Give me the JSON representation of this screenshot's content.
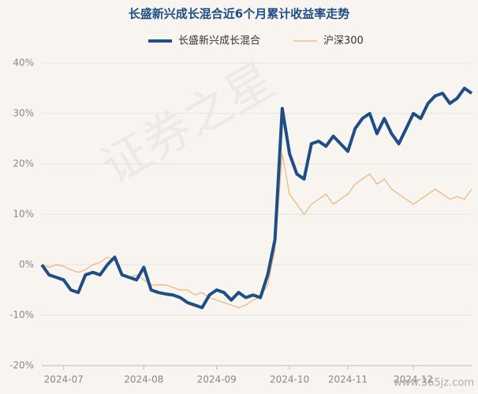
{
  "chart_data": {
    "type": "line",
    "title": "长盛新兴成长混合近6个月累计收益率走势",
    "watermark": "证券之星",
    "site_mark": "www.365jz.com",
    "categories": [
      null,
      null,
      null,
      "2024-07",
      null,
      null,
      null,
      null,
      null,
      null,
      null,
      null,
      null,
      null,
      "2024-08",
      null,
      null,
      null,
      null,
      null,
      null,
      null,
      null,
      null,
      "2024-09",
      null,
      null,
      null,
      null,
      null,
      null,
      null,
      null,
      null,
      "2024-10",
      null,
      null,
      null,
      null,
      null,
      null,
      null,
      "2024-11",
      null,
      null,
      null,
      null,
      null,
      null,
      null,
      null,
      "2024-12",
      null,
      null,
      null,
      null,
      null,
      null,
      null,
      null
    ],
    "series": [
      {
        "name": "长盛新兴成长混合",
        "color": "#1f4e85",
        "width": 4,
        "values": [
          0,
          -2,
          -2.5,
          -3,
          -5,
          -5.5,
          -2,
          -1.5,
          -2,
          0,
          1.5,
          -2,
          -2.5,
          -3,
          -0.5,
          -5,
          -5.5,
          -5.8,
          -6,
          -6.5,
          -7.5,
          -8,
          -8.5,
          -6,
          -5,
          -5.5,
          -7,
          -5.5,
          -6.5,
          -6,
          -6.5,
          -2,
          5,
          31,
          22,
          18,
          17,
          24,
          24.5,
          23.5,
          25.5,
          24,
          22.5,
          27,
          29,
          30,
          26,
          29,
          26,
          24,
          27,
          30,
          29,
          32,
          33.5,
          34,
          32,
          33,
          35,
          34
        ]
      },
      {
        "name": "沪深300",
        "color": "#f0b27a",
        "width": 1.2,
        "values": [
          0,
          -0.5,
          0,
          -0.3,
          -1,
          -1.5,
          -1,
          0,
          0.5,
          1.5,
          1,
          -2,
          -2.5,
          -2,
          -3,
          -4,
          -4,
          -4,
          -4.5,
          -5,
          -5,
          -6,
          -5.5,
          -6.5,
          -7,
          -7.5,
          -8,
          -8.5,
          -8,
          -7,
          -6.5,
          -4,
          3,
          22,
          14,
          12,
          10,
          12,
          13,
          14,
          12,
          13,
          14,
          16,
          17,
          18,
          16,
          17,
          15,
          14,
          13,
          12,
          13,
          14,
          15,
          14,
          13,
          13.5,
          13,
          15
        ]
      }
    ],
    "ylim": [
      -20,
      40
    ],
    "yticks": [
      {
        "value": -20,
        "label": "-20%"
      },
      {
        "value": -10,
        "label": "-10%"
      },
      {
        "value": 0,
        "label": "0%"
      },
      {
        "value": 10,
        "label": "10%"
      },
      {
        "value": 20,
        "label": "20%"
      },
      {
        "value": 30,
        "label": "30%"
      },
      {
        "value": 40,
        "label": "40%"
      }
    ],
    "grid": true
  }
}
